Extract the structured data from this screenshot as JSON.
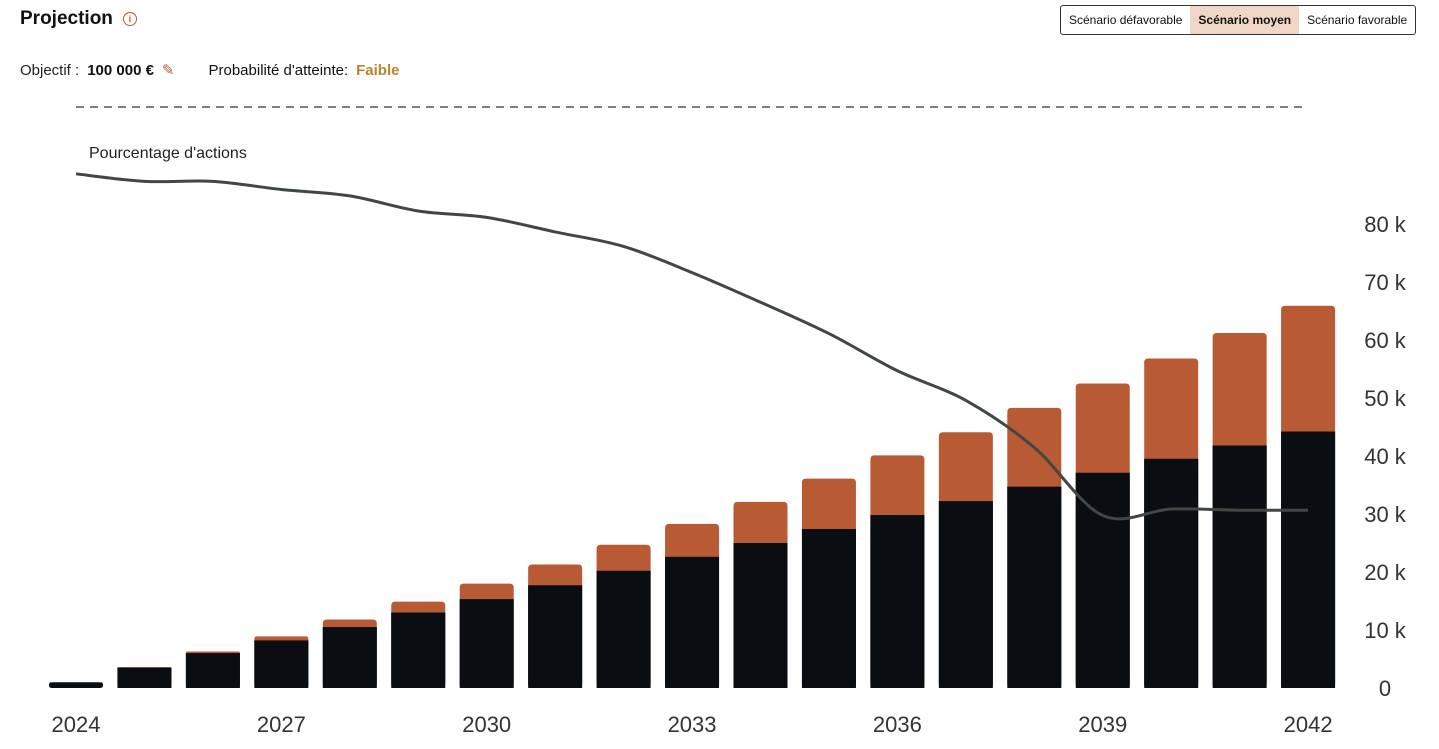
{
  "header": {
    "title": "Projection"
  },
  "scenarios": [
    {
      "label": "Scénario défavorable",
      "active": false
    },
    {
      "label": "Scénario moyen",
      "active": true
    },
    {
      "label": "Scénario favorable",
      "active": false
    }
  ],
  "objective": {
    "label": "Objectif :",
    "value": "100 000 €"
  },
  "probability": {
    "label": "Probabilité d'atteinte:",
    "value": "Faible",
    "color": "#b8862c"
  },
  "colors": {
    "invested": "#0a0e12",
    "gains": "#b85b35",
    "line": "#404744",
    "accent": "#b85b35"
  },
  "icons": [
    "info-icon",
    "pencil-icon"
  ],
  "chart_data": {
    "type": "bar",
    "stacked": true,
    "categories": [
      "2024",
      "2025",
      "2026",
      "2027",
      "2028",
      "2029",
      "2030",
      "2031",
      "2032",
      "2033",
      "2034",
      "2035",
      "2036",
      "2037",
      "2038",
      "2039",
      "2040",
      "2041",
      "2042"
    ],
    "x_tick_labels": [
      "2024",
      "2027",
      "2030",
      "2033",
      "2036",
      "2039",
      "2042"
    ],
    "series": [
      {
        "values": [
          1000,
          3500,
          6000,
          8200,
          10500,
          13000,
          15300,
          17700,
          20200,
          22600,
          25000,
          27400,
          29800,
          32200,
          34700,
          37100,
          39500,
          41800,
          44200
        ]
      },
      {
        "values": [
          0,
          100,
          300,
          700,
          1300,
          1900,
          2700,
          3600,
          4500,
          5700,
          7100,
          8700,
          10300,
          11900,
          13600,
          15400,
          17300,
          19400,
          21700
        ]
      }
    ],
    "y_ticks": [
      "0",
      "10 k",
      "20 k",
      "30 k",
      "40 k",
      "50 k",
      "60 k",
      "70 k",
      "80 k"
    ],
    "ylim": [
      0,
      80000
    ],
    "objective_line": 100000,
    "line_series": {
      "name": "Pourcentage d'actions",
      "values": [
        88.5,
        87.2,
        87.2,
        85.8,
        84.7,
        82.1,
        81,
        78.5,
        76,
        71.5,
        66.4,
        61,
        54.6,
        49.5,
        41.4,
        29.7,
        30.8,
        30.6,
        30.6
      ]
    }
  }
}
